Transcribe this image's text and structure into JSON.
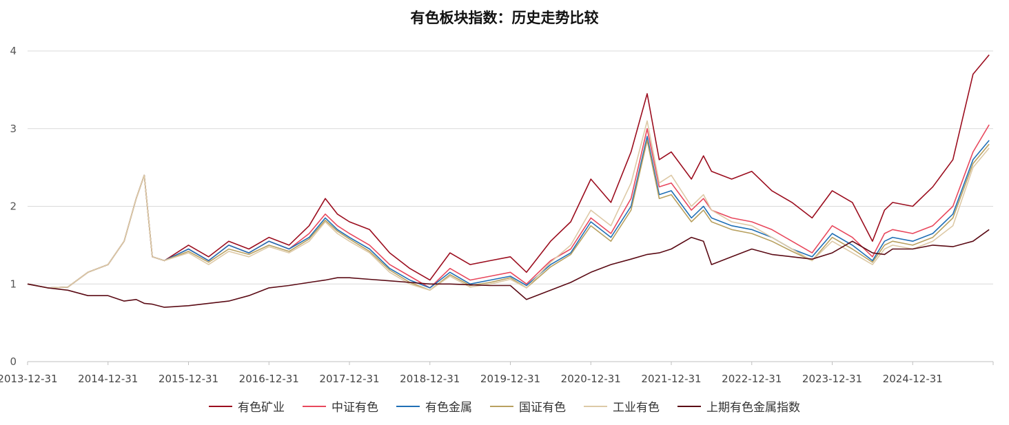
{
  "title": "有色板块指数：历史走势比较",
  "chart_data": {
    "type": "line",
    "title": "有色板块指数：历史走势比较",
    "xlabel": "",
    "ylabel": "",
    "ylim": [
      0,
      4
    ],
    "yticks": [
      "0",
      "1",
      "2",
      "3",
      "4"
    ],
    "x_tick_labels": [
      "2013-12-31",
      "2014-12-31",
      "2015-12-31",
      "2016-12-31",
      "2017-12-31",
      "2018-12-31",
      "2019-12-31",
      "2020-12-31",
      "2021-12-31",
      "2022-12-31",
      "2023-12-31",
      "2024-12-31"
    ],
    "grid": "horizontal",
    "legend_position": "bottom",
    "x": [
      2014.0,
      2014.25,
      2014.5,
      2014.75,
      2015.0,
      2015.2,
      2015.35,
      2015.45,
      2015.55,
      2015.7,
      2016.0,
      2016.25,
      2016.5,
      2016.75,
      2017.0,
      2017.25,
      2017.5,
      2017.7,
      2017.85,
      2018.0,
      2018.25,
      2018.5,
      2018.75,
      2019.0,
      2019.25,
      2019.5,
      2019.75,
      2020.0,
      2020.2,
      2020.5,
      2020.75,
      2021.0,
      2021.25,
      2021.5,
      2021.7,
      2021.85,
      2022.0,
      2022.25,
      2022.4,
      2022.5,
      2022.75,
      2023.0,
      2023.25,
      2023.5,
      2023.75,
      2024.0,
      2024.25,
      2024.5,
      2024.65,
      2024.75,
      2025.0,
      2025.25,
      2025.5,
      2025.75,
      2025.95
    ],
    "series": [
      {
        "name": "有色矿业",
        "color": "#9b0d1e",
        "values": [
          1.0,
          0.95,
          0.96,
          1.15,
          1.25,
          1.55,
          2.1,
          2.4,
          1.35,
          1.3,
          1.5,
          1.35,
          1.55,
          1.45,
          1.6,
          1.5,
          1.75,
          2.1,
          1.9,
          1.8,
          1.7,
          1.4,
          1.2,
          1.05,
          1.4,
          1.25,
          1.3,
          1.35,
          1.15,
          1.55,
          1.8,
          2.35,
          2.05,
          2.7,
          3.45,
          2.6,
          2.7,
          2.35,
          2.65,
          2.45,
          2.35,
          2.45,
          2.2,
          2.05,
          1.85,
          2.2,
          2.05,
          1.55,
          1.95,
          2.05,
          2.0,
          2.25,
          2.6,
          3.7,
          3.95
        ]
      },
      {
        "name": "中证有色",
        "color": "#e8475c",
        "values": [
          1.0,
          0.95,
          0.96,
          1.15,
          1.25,
          1.55,
          2.1,
          2.4,
          1.35,
          1.3,
          1.45,
          1.3,
          1.5,
          1.4,
          1.55,
          1.45,
          1.65,
          1.9,
          1.75,
          1.65,
          1.5,
          1.25,
          1.1,
          0.95,
          1.2,
          1.05,
          1.1,
          1.15,
          1.0,
          1.3,
          1.45,
          1.85,
          1.65,
          2.1,
          3.0,
          2.25,
          2.3,
          1.95,
          2.1,
          1.95,
          1.85,
          1.8,
          1.7,
          1.55,
          1.4,
          1.75,
          1.6,
          1.35,
          1.65,
          1.7,
          1.65,
          1.75,
          2.0,
          2.7,
          3.05
        ]
      },
      {
        "name": "有色金属",
        "color": "#1f6fb5",
        "values": [
          1.0,
          0.95,
          0.96,
          1.15,
          1.25,
          1.55,
          2.1,
          2.4,
          1.35,
          1.3,
          1.45,
          1.3,
          1.5,
          1.4,
          1.55,
          1.45,
          1.6,
          1.85,
          1.7,
          1.6,
          1.45,
          1.2,
          1.05,
          0.95,
          1.15,
          1.0,
          1.05,
          1.1,
          0.98,
          1.25,
          1.4,
          1.8,
          1.6,
          2.0,
          2.9,
          2.15,
          2.2,
          1.85,
          2.0,
          1.85,
          1.75,
          1.7,
          1.6,
          1.45,
          1.35,
          1.65,
          1.5,
          1.3,
          1.55,
          1.6,
          1.55,
          1.65,
          1.9,
          2.6,
          2.85
        ]
      },
      {
        "name": "国证有色",
        "color": "#b8a05f",
        "values": [
          1.0,
          0.95,
          0.96,
          1.15,
          1.25,
          1.55,
          2.1,
          2.4,
          1.35,
          1.3,
          1.42,
          1.28,
          1.45,
          1.38,
          1.5,
          1.42,
          1.58,
          1.82,
          1.68,
          1.58,
          1.42,
          1.18,
          1.02,
          0.92,
          1.12,
          0.98,
          1.02,
          1.08,
          0.95,
          1.22,
          1.38,
          1.75,
          1.55,
          1.95,
          2.85,
          2.1,
          2.15,
          1.8,
          1.95,
          1.8,
          1.7,
          1.65,
          1.55,
          1.42,
          1.3,
          1.6,
          1.45,
          1.28,
          1.5,
          1.55,
          1.5,
          1.6,
          1.85,
          2.55,
          2.8
        ]
      },
      {
        "name": "工业有色",
        "color": "#ddc9a6",
        "values": [
          1.0,
          0.95,
          0.96,
          1.15,
          1.25,
          1.55,
          2.1,
          2.4,
          1.35,
          1.3,
          1.4,
          1.25,
          1.42,
          1.35,
          1.48,
          1.4,
          1.55,
          1.8,
          1.65,
          1.55,
          1.4,
          1.15,
          1.0,
          0.92,
          1.1,
          0.96,
          1.0,
          1.06,
          0.95,
          1.28,
          1.5,
          1.95,
          1.75,
          2.3,
          3.1,
          2.3,
          2.4,
          2.0,
          2.15,
          1.95,
          1.8,
          1.75,
          1.6,
          1.45,
          1.3,
          1.55,
          1.4,
          1.25,
          1.45,
          1.5,
          1.45,
          1.55,
          1.75,
          2.5,
          2.75
        ]
      },
      {
        "name": "上期有色金属指数",
        "color": "#5a0a14",
        "values": [
          1.0,
          0.95,
          0.92,
          0.85,
          0.85,
          0.78,
          0.8,
          0.75,
          0.74,
          0.7,
          0.72,
          0.75,
          0.78,
          0.85,
          0.95,
          0.98,
          1.02,
          1.05,
          1.08,
          1.08,
          1.06,
          1.04,
          1.02,
          1.0,
          1.0,
          0.99,
          0.98,
          0.98,
          0.8,
          0.92,
          1.02,
          1.15,
          1.25,
          1.32,
          1.38,
          1.4,
          1.45,
          1.6,
          1.55,
          1.25,
          1.35,
          1.45,
          1.38,
          1.35,
          1.32,
          1.4,
          1.55,
          1.4,
          1.38,
          1.45,
          1.45,
          1.5,
          1.48,
          1.55,
          1.7
        ]
      }
    ]
  }
}
